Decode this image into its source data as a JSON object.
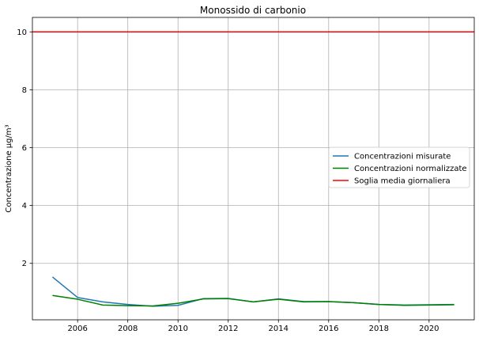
{
  "chart_data": {
    "type": "line",
    "title": "Monossido di carbonio",
    "xlabel": "",
    "ylabel": "Concentrazione µg/m³",
    "xlim": [
      2004.2,
      2021.8
    ],
    "ylim": [
      0.05,
      10.5
    ],
    "xticks": [
      2006,
      2008,
      2010,
      2012,
      2014,
      2016,
      2018,
      2020
    ],
    "yticks": [
      2,
      4,
      6,
      8,
      10
    ],
    "grid": true,
    "legend_position": "center-right",
    "x": [
      2005,
      2006,
      2007,
      2008,
      2009,
      2010,
      2011,
      2012,
      2013,
      2014,
      2015,
      2016,
      2017,
      2018,
      2019,
      2020,
      2021
    ],
    "series": [
      {
        "name": "Concentrazioni misurate",
        "color": "#1f77b4",
        "values": [
          1.53,
          0.82,
          0.67,
          0.58,
          0.52,
          0.55,
          0.78,
          0.79,
          0.67,
          0.77,
          0.68,
          0.68,
          0.64,
          0.58,
          0.56,
          0.57,
          0.58
        ]
      },
      {
        "name": "Concentrazioni normalizzate",
        "color": "#008000",
        "values": [
          0.89,
          0.76,
          0.56,
          0.54,
          0.53,
          0.62,
          0.77,
          0.78,
          0.67,
          0.76,
          0.67,
          0.68,
          0.64,
          0.58,
          0.55,
          0.56,
          0.57
        ]
      }
    ],
    "threshold": {
      "name": "Soglia media giornaliera",
      "value": 10,
      "color": "#ff0000"
    }
  }
}
